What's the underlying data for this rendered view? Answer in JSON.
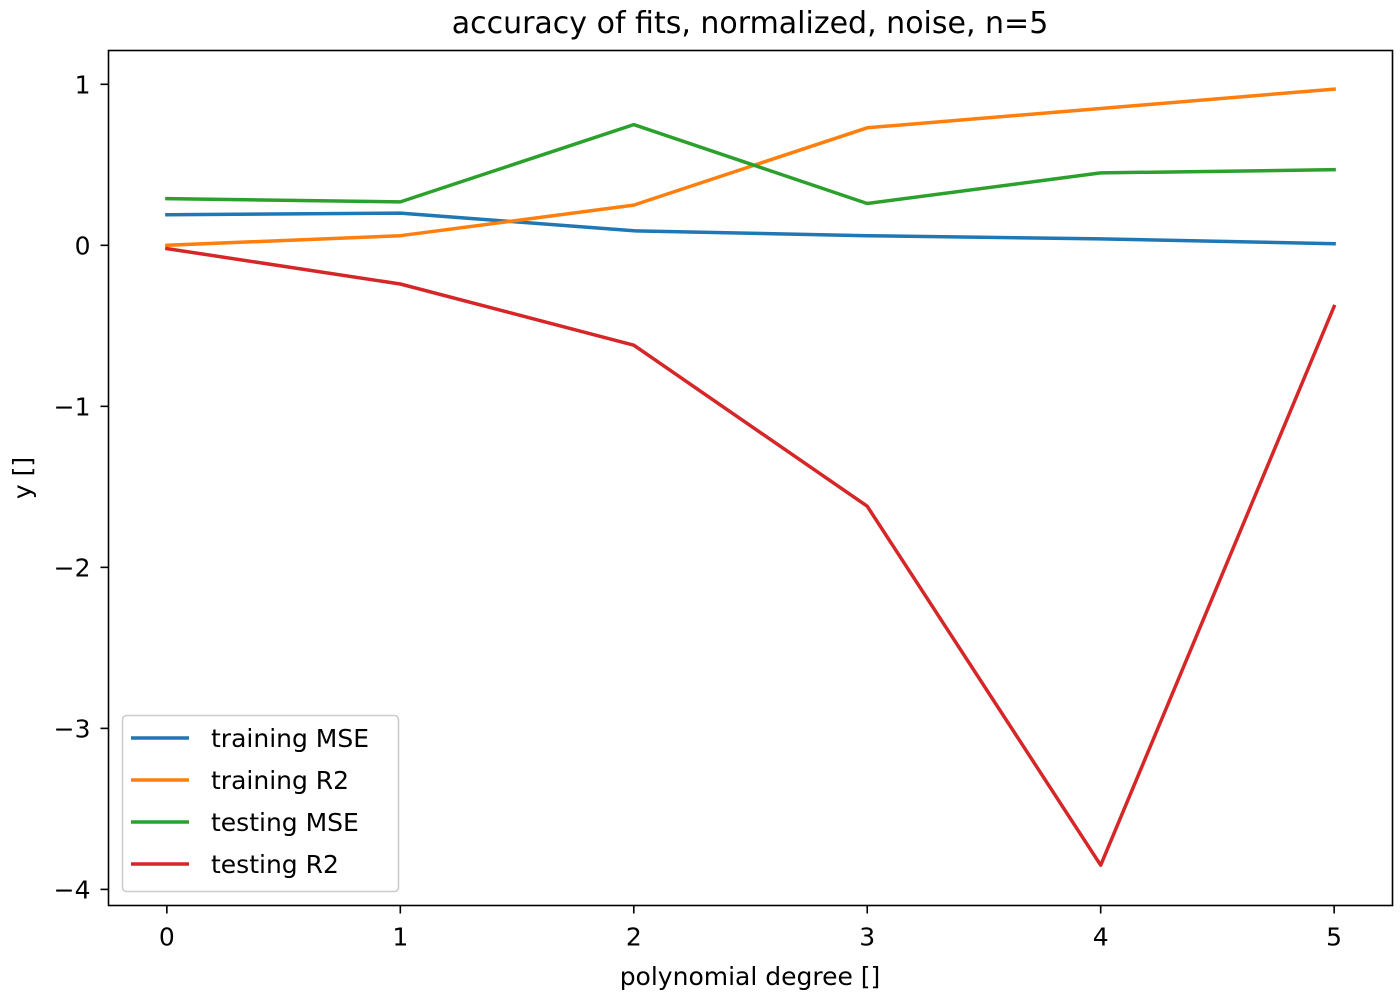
{
  "chart_data": {
    "type": "line",
    "title": "accuracy of fits, normalized, noise, n=5",
    "xlabel": "polynomial degree []",
    "ylabel": "y []",
    "x": [
      0,
      1,
      2,
      3,
      4,
      5
    ],
    "xticks": [
      0,
      1,
      2,
      3,
      4,
      5
    ],
    "xtick_labels": [
      "0",
      "1",
      "2",
      "3",
      "4",
      "5"
    ],
    "yticks": [
      1,
      0,
      -1,
      -2,
      -3,
      -4
    ],
    "ytick_labels": [
      "1",
      "0",
      "−1",
      "−2",
      "−3",
      "−4"
    ],
    "xlim": [
      -0.25,
      5.25
    ],
    "ylim": [
      -4.1,
      1.21
    ],
    "grid": false,
    "legend_position": "lower-left",
    "series": [
      {
        "name": "training MSE",
        "color": "#1f77b4",
        "values": [
          0.19,
          0.2,
          0.09,
          0.06,
          0.04,
          0.01
        ]
      },
      {
        "name": "training R2",
        "color": "#ff7f0e",
        "values": [
          0.0,
          0.06,
          0.25,
          0.73,
          0.85,
          0.97
        ]
      },
      {
        "name": "testing MSE",
        "color": "#2ca02c",
        "values": [
          0.29,
          0.27,
          0.75,
          0.26,
          0.45,
          0.47
        ]
      },
      {
        "name": "testing R2",
        "color": "#d62728",
        "values": [
          -0.02,
          -0.24,
          -0.62,
          -1.62,
          -3.85,
          -0.38
        ]
      }
    ]
  }
}
